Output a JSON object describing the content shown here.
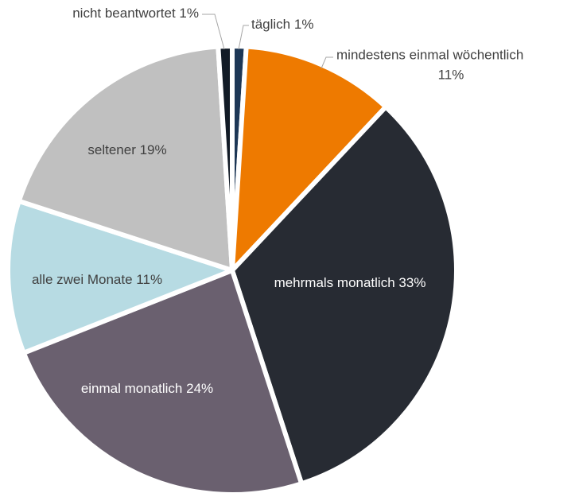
{
  "chart_data": {
    "type": "pie",
    "categories": [
      "täglich",
      "mindestens einmal wöchentlich",
      "mehrmals monatlich",
      "einmal monatlich",
      "alle zwei Monate",
      "seltener",
      "nicht beantwortet"
    ],
    "values": [
      1,
      11,
      33,
      24,
      11,
      19,
      1
    ],
    "value_labels": [
      "1%",
      "11%",
      "33%",
      "24%",
      "11%",
      "19%",
      "1%"
    ],
    "colors": [
      "#1d3756",
      "#ee7a00",
      "#272b33",
      "#6a606f",
      "#b7dbe3",
      "#c0c0c0",
      "#121b26"
    ]
  }
}
